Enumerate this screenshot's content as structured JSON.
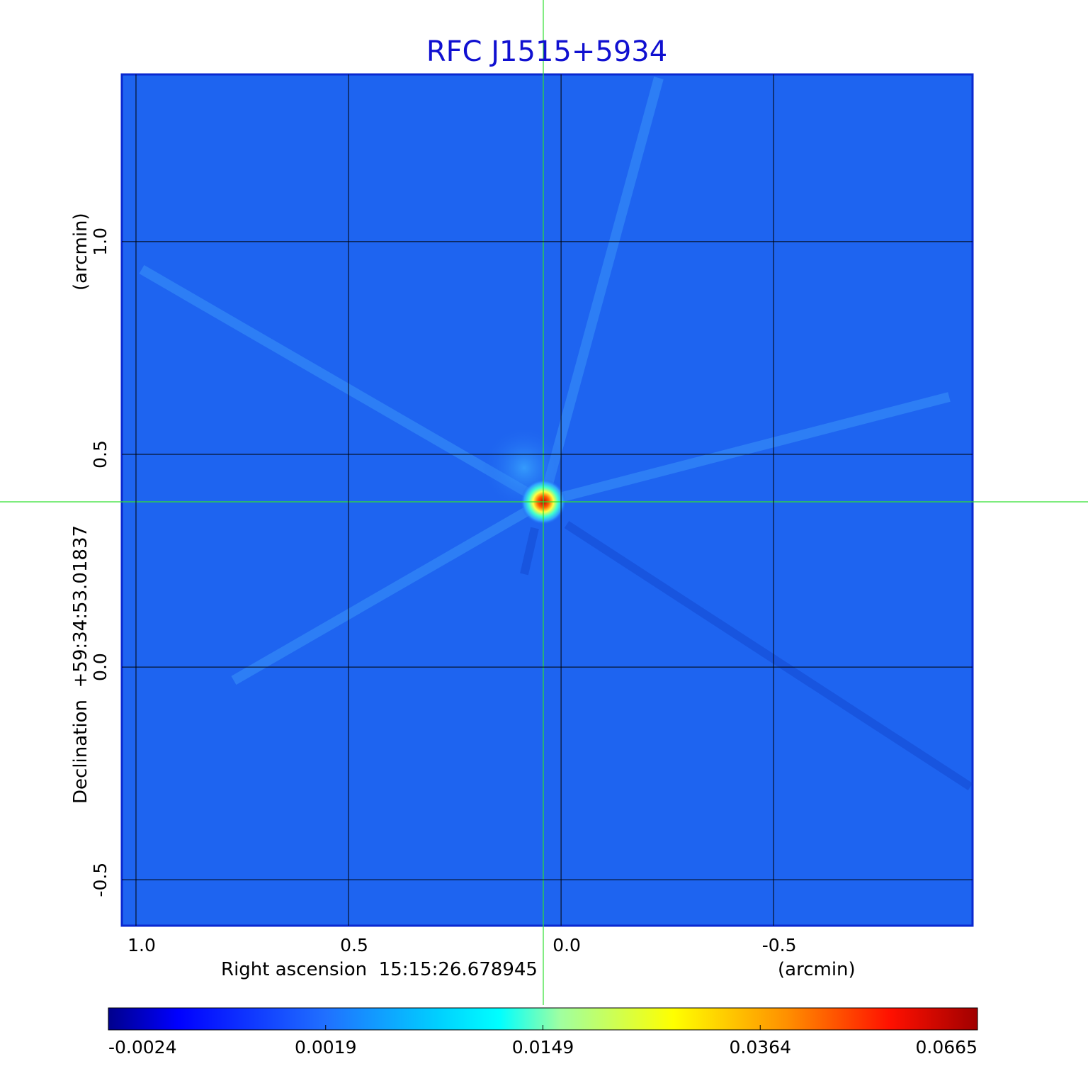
{
  "chart_data": {
    "type": "image",
    "title": "RFC J1515+5934",
    "x_label": "Right ascension  15:15:26.678945",
    "x_unit": "(arcmin)",
    "y_label": "Declination  +59:34:53.01837",
    "y_unit": "(arcmin)",
    "xlim": [
      1.0333,
      -0.968
    ],
    "ylim": [
      -0.608,
      1.393
    ],
    "xticks": [
      {
        "value": 1,
        "label": "1.0"
      },
      0.5,
      {
        "value": 0,
        "label": "0.0"
      },
      -0.5
    ],
    "yticks": [
      {
        "value": 1,
        "label": "1.0"
      },
      0.5,
      {
        "value": 0,
        "label": "0.0"
      },
      -0.5
    ],
    "grid": true,
    "colorbar_ticks": [
      -0.0024,
      0.0019,
      0.0149,
      0.0364,
      0.0665
    ]
  }
}
